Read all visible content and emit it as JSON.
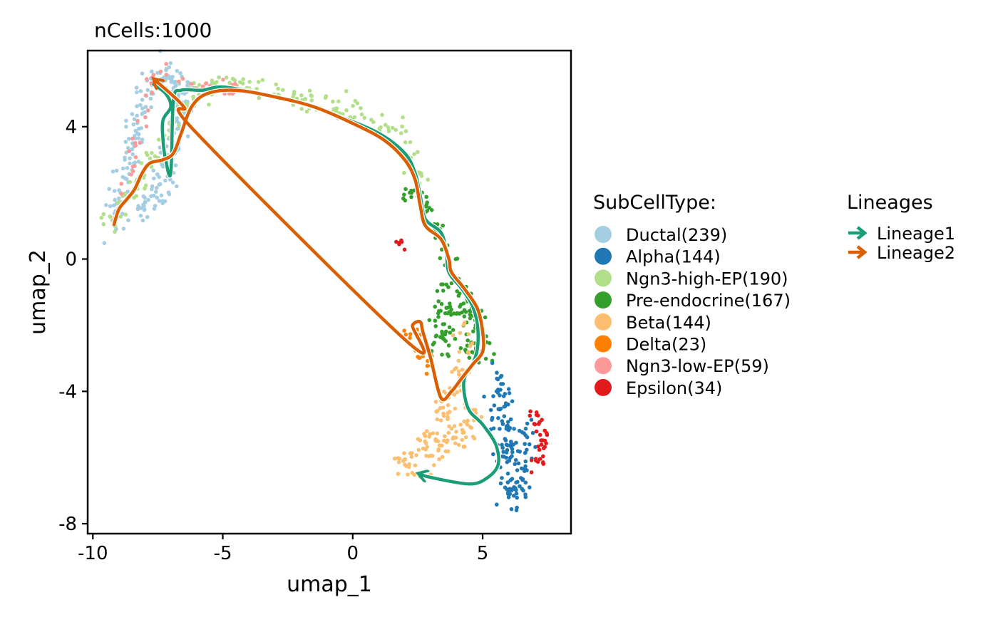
{
  "chart_data": {
    "type": "scatter",
    "title": "nCells:1000",
    "xlabel": "umap_1",
    "ylabel": "umap_2",
    "xlim": [
      -10.2,
      8.4
    ],
    "ylim": [
      -8.3,
      6.3
    ],
    "xticks": [
      -10,
      -5,
      0,
      5
    ],
    "yticks": [
      -8,
      -4,
      0,
      4
    ],
    "xtick_labels": [
      "-10",
      "-5",
      "0",
      "5"
    ],
    "ytick_labels": [
      "-8",
      "-4",
      "0",
      "4"
    ],
    "grid": false,
    "legend_position": "right",
    "color_legend": {
      "title": "SubCellType:",
      "entries": [
        {
          "label": "Ductal(239)",
          "color": "#a6cee3"
        },
        {
          "label": "Alpha(144)",
          "color": "#1f78b4"
        },
        {
          "label": "Ngn3-high-EP(190)",
          "color": "#b2df8a"
        },
        {
          "label": "Pre-endocrine(167)",
          "color": "#33a02c"
        },
        {
          "label": "Beta(144)",
          "color": "#fdbf6f"
        },
        {
          "label": "Delta(23)",
          "color": "#ff7f00"
        },
        {
          "label": "Ngn3-low-EP(59)",
          "color": "#fb9a99"
        },
        {
          "label": "Epsilon(34)",
          "color": "#e31a1c"
        }
      ]
    },
    "lineage_legend": {
      "title": "Lineages",
      "entries": [
        {
          "label": "Lineage1",
          "color": "#1b9e77"
        },
        {
          "label": "Lineage2",
          "color": "#d95f02"
        }
      ]
    },
    "clusters": [
      {
        "name": "Ductal(239)",
        "n": 239,
        "color": "#a6cee3",
        "path": [
          [
            -9.3,
            1.0
          ],
          [
            -9.0,
            1.8
          ],
          [
            -8.9,
            2.6
          ],
          [
            -8.6,
            3.1
          ],
          [
            -8.3,
            3.8
          ],
          [
            -8.1,
            4.6
          ],
          [
            -7.8,
            5.3
          ],
          [
            -7.2,
            5.5
          ],
          [
            -6.6,
            5.5
          ],
          [
            -6.3,
            5.0
          ],
          [
            -6.8,
            4.3
          ],
          [
            -6.9,
            3.5
          ],
          [
            -7.2,
            2.6
          ],
          [
            -7.6,
            1.8
          ],
          [
            -8.2,
            1.3
          ]
        ],
        "spread": 0.22
      },
      {
        "name": "Ngn3-high-EP(190)",
        "n": 190,
        "color": "#b2df8a",
        "path": [
          [
            -9.4,
            1.0
          ],
          [
            -5.8,
            5.3
          ],
          [
            -4.5,
            5.3
          ],
          [
            -3.0,
            5.0
          ],
          [
            -1.5,
            4.8
          ],
          [
            0.0,
            4.4
          ],
          [
            1.2,
            4.0
          ],
          [
            2.0,
            3.6
          ],
          [
            2.4,
            2.8
          ],
          [
            2.6,
            2.2
          ]
        ],
        "spread": 0.18
      },
      {
        "name": "Pre-endocrine(167)",
        "n": 167,
        "color": "#33a02c",
        "path": [
          [
            1.8,
            2.0
          ],
          [
            2.8,
            1.7
          ],
          [
            3.3,
            1.0
          ],
          [
            3.5,
            0.2
          ],
          [
            3.6,
            -0.6
          ],
          [
            4.0,
            -0.8
          ],
          [
            4.6,
            -1.5
          ],
          [
            4.8,
            -2.3
          ],
          [
            4.9,
            -3.0
          ],
          [
            3.6,
            -1.2
          ],
          [
            3.2,
            -2.8
          ]
        ],
        "spread": 0.22
      },
      {
        "name": "Beta(144)",
        "n": 144,
        "color": "#fdbf6f",
        "path": [
          [
            4.4,
            -2.0
          ],
          [
            4.2,
            -3.3
          ],
          [
            3.9,
            -4.0
          ],
          [
            3.4,
            -4.6
          ],
          [
            3.2,
            -5.2
          ],
          [
            3.0,
            -5.5
          ],
          [
            2.4,
            -5.8
          ],
          [
            1.9,
            -6.2
          ],
          [
            2.0,
            -6.5
          ],
          [
            4.4,
            -5.2
          ],
          [
            4.6,
            -4.5
          ]
        ],
        "spread": 0.22
      },
      {
        "name": "Alpha(144)",
        "n": 144,
        "color": "#1f78b4",
        "path": [
          [
            5.6,
            -3.5
          ],
          [
            5.8,
            -4.2
          ],
          [
            5.6,
            -5.0
          ],
          [
            6.0,
            -5.5
          ],
          [
            5.8,
            -6.2
          ],
          [
            6.1,
            -6.7
          ],
          [
            5.9,
            -7.2
          ],
          [
            6.4,
            -7.0
          ],
          [
            6.6,
            -5.8
          ],
          [
            6.7,
            -4.9
          ]
        ],
        "spread": 0.22
      },
      {
        "name": "Epsilon(34)",
        "n": 34,
        "color": "#e31a1c",
        "path": [
          [
            6.9,
            -4.6
          ],
          [
            7.3,
            -5.0
          ],
          [
            7.4,
            -5.4
          ],
          [
            7.2,
            -6.0
          ],
          [
            7.0,
            -6.2
          ]
        ],
        "spread": 0.12
      },
      {
        "name": "Delta(23)",
        "n": 23,
        "color": "#ff7f00",
        "path": [
          [
            2.0,
            -2.2
          ],
          [
            2.4,
            -2.4
          ],
          [
            2.6,
            -2.9
          ],
          [
            3.0,
            -3.5
          ]
        ],
        "spread": 0.12
      },
      {
        "name": "Ngn3-low-EP(59)",
        "n": 59,
        "color": "#fb9a99",
        "path": [
          [
            -9.2,
            1.0
          ],
          [
            -8.9,
            1.8
          ],
          [
            -8.1,
            4.2
          ],
          [
            -7.6,
            5.5
          ],
          [
            -7.1,
            5.7
          ],
          [
            -6.2,
            5.4
          ],
          [
            -5.5,
            5.3
          ],
          [
            -4.5,
            5.2
          ],
          [
            -4.8,
            4.9
          ]
        ],
        "spread": 0.12
      },
      {
        "name": "Epsilon(34)-island",
        "n": 6,
        "color": "#e31a1c",
        "path": [
          [
            1.8,
            0.6
          ],
          [
            1.9,
            0.4
          ]
        ],
        "spread": 0.06
      }
    ],
    "lineages": [
      {
        "name": "Lineage1",
        "color": "#1b9e77",
        "path": [
          [
            -7.7,
            5.3
          ],
          [
            -7.2,
            5.0
          ],
          [
            -7.0,
            4.6
          ],
          [
            -7.3,
            4.2
          ],
          [
            -7.3,
            3.6
          ],
          [
            -7.2,
            3.0
          ],
          [
            -7.0,
            2.6
          ],
          [
            -6.9,
            4.8
          ],
          [
            -6.6,
            5.1
          ],
          [
            -5.8,
            5.1
          ],
          [
            -5.0,
            5.2
          ],
          [
            -3.5,
            5.0
          ],
          [
            -2.0,
            4.7
          ],
          [
            -0.5,
            4.3
          ],
          [
            1.0,
            3.8
          ],
          [
            2.0,
            3.2
          ],
          [
            2.4,
            2.6
          ],
          [
            2.6,
            1.9
          ],
          [
            2.8,
            1.2
          ],
          [
            3.4,
            0.8
          ],
          [
            3.6,
            0.2
          ],
          [
            3.7,
            -0.4
          ],
          [
            4.2,
            -0.9
          ],
          [
            4.6,
            -1.4
          ],
          [
            4.8,
            -2.0
          ],
          [
            4.8,
            -2.7
          ],
          [
            4.6,
            -3.2
          ],
          [
            4.3,
            -3.6
          ],
          [
            4.3,
            -4.1
          ],
          [
            4.5,
            -4.6
          ],
          [
            5.0,
            -5.0
          ],
          [
            5.5,
            -5.6
          ],
          [
            5.6,
            -6.2
          ],
          [
            5.2,
            -6.6
          ],
          [
            4.5,
            -6.8
          ],
          [
            3.0,
            -6.6
          ],
          [
            2.6,
            -6.5
          ]
        ]
      },
      {
        "name": "Lineage2",
        "color": "#d95f02",
        "path": [
          [
            -9.2,
            1.0
          ],
          [
            -9.0,
            1.5
          ],
          [
            -8.7,
            1.8
          ],
          [
            -8.4,
            2.1
          ],
          [
            -8.1,
            2.6
          ],
          [
            -7.8,
            2.9
          ],
          [
            -7.3,
            3.0
          ],
          [
            -6.9,
            3.2
          ],
          [
            -6.6,
            3.8
          ],
          [
            -6.2,
            4.6
          ],
          [
            -5.6,
            5.0
          ],
          [
            -4.5,
            5.1
          ],
          [
            -3.0,
            4.9
          ],
          [
            -1.5,
            4.6
          ],
          [
            0.0,
            4.1
          ],
          [
            1.2,
            3.6
          ],
          [
            2.0,
            3.0
          ],
          [
            2.4,
            2.4
          ],
          [
            2.6,
            1.6
          ],
          [
            2.8,
            1.0
          ],
          [
            3.4,
            0.6
          ],
          [
            3.7,
            0.0
          ],
          [
            3.8,
            -0.4
          ],
          [
            4.3,
            -0.9
          ],
          [
            4.8,
            -1.5
          ],
          [
            5.0,
            -2.2
          ],
          [
            5.0,
            -2.8
          ],
          [
            4.6,
            -3.2
          ],
          [
            4.2,
            -3.6
          ],
          [
            3.8,
            -4.0
          ],
          [
            3.4,
            -4.2
          ],
          [
            3.0,
            -3.0
          ],
          [
            2.7,
            -2.2
          ],
          [
            2.6,
            -1.9
          ],
          [
            2.3,
            -2.0
          ],
          [
            2.1,
            -2.5
          ],
          [
            -6.0,
            3.8
          ],
          [
            -6.5,
            4.6
          ],
          [
            -7.6,
            5.4
          ]
        ]
      }
    ]
  }
}
